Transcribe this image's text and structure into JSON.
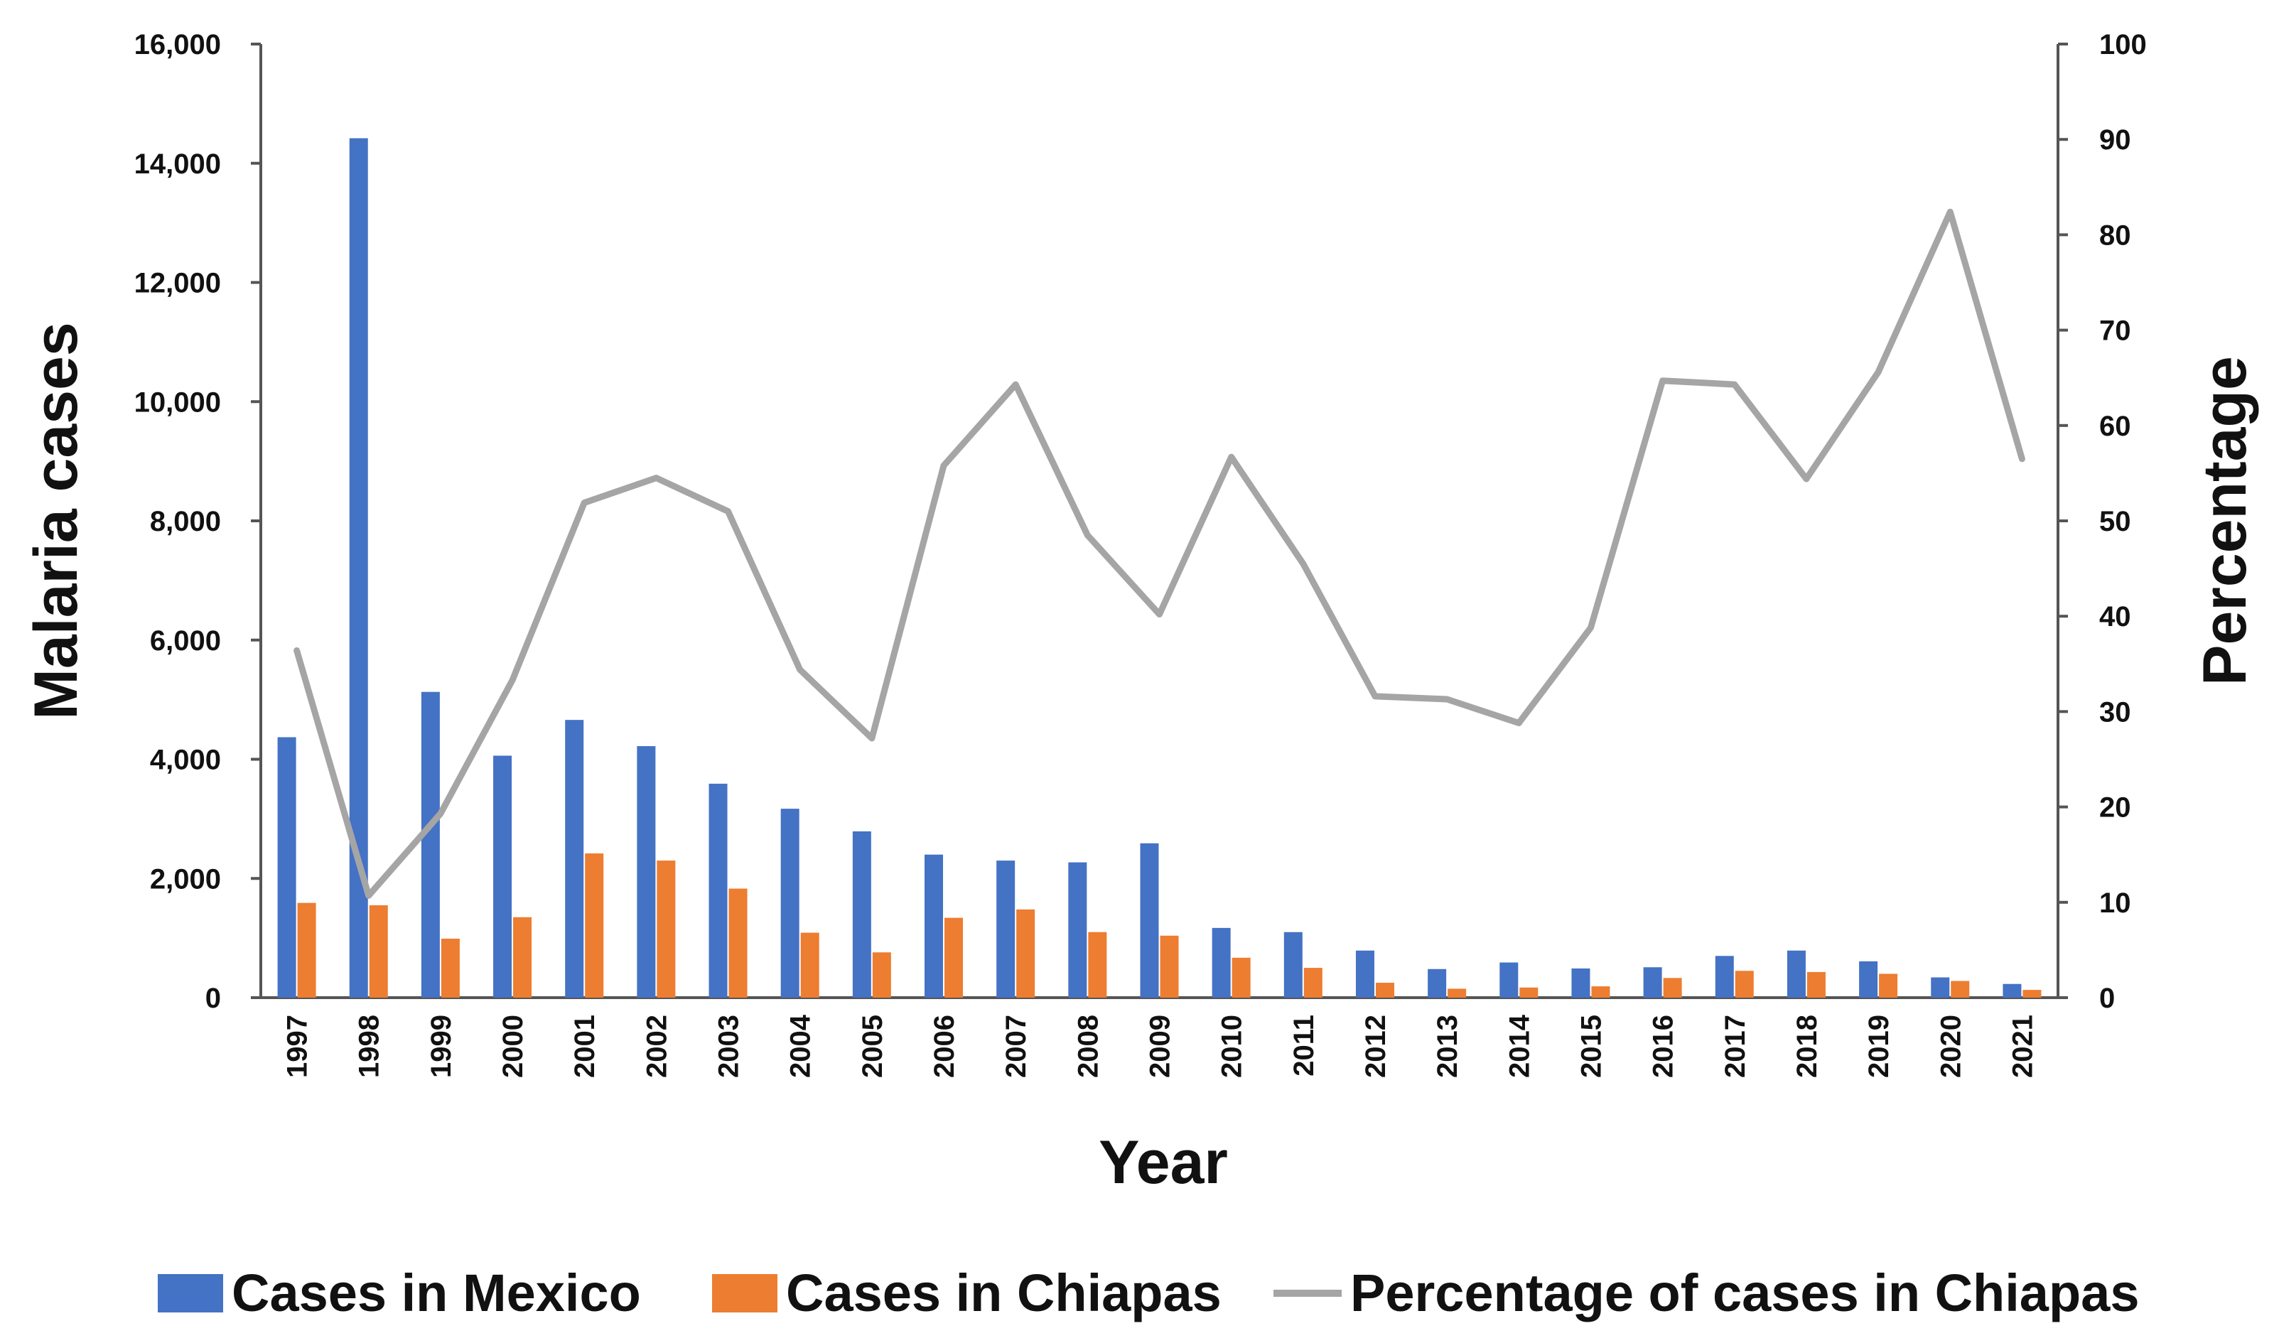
{
  "chart_data": {
    "type": "bar",
    "title": "",
    "xlabel": "Year",
    "ylabel": "Malaria cases",
    "y2label": "Percentage",
    "ylim": [
      0,
      16000
    ],
    "y2lim": [
      0,
      100
    ],
    "yticks": [
      "0",
      "2,000",
      "4,000",
      "6,000",
      "8,000",
      "10,000",
      "12,000",
      "14,000",
      "16,000"
    ],
    "y2ticks": [
      "0",
      "10",
      "20",
      "30",
      "40",
      "50",
      "60",
      "70",
      "80",
      "90",
      "100"
    ],
    "grid": false,
    "legend_position": "bottom",
    "categories": [
      "1997",
      "1998",
      "1999",
      "2000",
      "2001",
      "2002",
      "2003",
      "2004",
      "2005",
      "2006",
      "2007",
      "2008",
      "2009",
      "2010",
      "2011",
      "2012",
      "2013",
      "2014",
      "2015",
      "2016",
      "2017",
      "2018",
      "2019",
      "2020",
      "2021"
    ],
    "series": [
      {
        "name": "Cases in Mexico",
        "type": "bar",
        "axis": "left",
        "color": "#4472C4",
        "values": [
          4370,
          14420,
          5130,
          4060,
          4660,
          4220,
          3590,
          3170,
          2790,
          2400,
          2300,
          2270,
          2590,
          1170,
          1100,
          790,
          480,
          590,
          490,
          510,
          700,
          790,
          610,
          340,
          230
        ]
      },
      {
        "name": "Cases in Chiapas",
        "type": "bar",
        "axis": "left",
        "color": "#ED7D31",
        "values": [
          1590,
          1550,
          990,
          1350,
          2420,
          2300,
          1830,
          1090,
          760,
          1340,
          1480,
          1100,
          1040,
          670,
          500,
          250,
          150,
          170,
          190,
          330,
          450,
          430,
          400,
          280,
          130
        ]
      },
      {
        "name": "Percentage of cases in Chiapas",
        "type": "line",
        "axis": "right",
        "color": "#A5A5A5",
        "values": [
          36.4,
          10.7,
          19.3,
          33.3,
          51.9,
          54.5,
          51.0,
          34.4,
          27.2,
          55.8,
          64.3,
          48.5,
          40.2,
          56.7,
          45.5,
          31.6,
          31.3,
          28.8,
          38.8,
          64.7,
          64.3,
          54.4,
          65.6,
          82.4,
          56.5
        ]
      }
    ]
  }
}
